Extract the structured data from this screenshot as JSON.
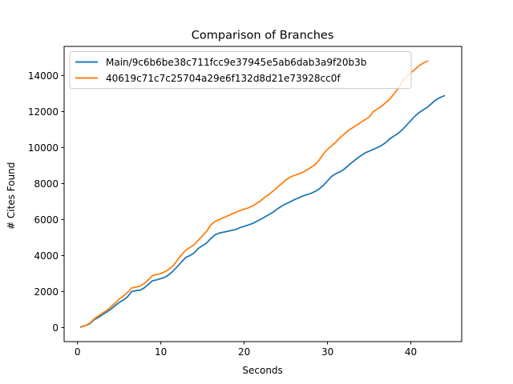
{
  "chart_data": {
    "type": "line",
    "title": "Comparison of Branches",
    "xlabel": "Seconds",
    "ylabel": "# Cites Found",
    "xlim": [
      -1.6,
      46.1
    ],
    "ylim": [
      -780,
      15620
    ],
    "xticks": [
      0,
      10,
      20,
      30,
      40
    ],
    "yticks": [
      0,
      2000,
      4000,
      6000,
      8000,
      10000,
      12000,
      14000
    ],
    "grid": false,
    "legend_position": "upper-left",
    "series": [
      {
        "name": "Main/9c6b6be38c711fcc9e37945e5ab6dab3a9f20b3b",
        "color": "#1f77b4",
        "x": [
          0.4,
          1.0,
          1.5,
          2.0,
          2.5,
          3.0,
          3.5,
          4.0,
          4.5,
          5.0,
          5.5,
          6.0,
          6.5,
          7.0,
          7.5,
          8.0,
          8.5,
          9.0,
          9.5,
          10.0,
          10.5,
          11.0,
          11.5,
          12.0,
          12.5,
          13.0,
          13.5,
          14.0,
          14.5,
          15.0,
          15.5,
          16.0,
          16.5,
          17.0,
          17.5,
          18.0,
          18.5,
          19.0,
          19.5,
          20.0,
          20.5,
          21.0,
          21.5,
          22.0,
          22.5,
          23.0,
          23.5,
          24.0,
          24.5,
          25.0,
          25.5,
          26.0,
          26.5,
          27.0,
          27.5,
          28.0,
          28.5,
          29.0,
          29.5,
          30.0,
          30.5,
          31.0,
          31.5,
          32.0,
          32.5,
          33.0,
          33.5,
          34.0,
          34.5,
          35.0,
          35.5,
          36.0,
          36.5,
          37.0,
          37.5,
          38.0,
          38.5,
          39.0,
          39.5,
          40.0,
          40.5,
          41.0,
          41.5,
          42.0,
          42.5,
          43.0,
          43.5,
          44.0
        ],
        "y": [
          30,
          110,
          220,
          430,
          560,
          720,
          860,
          1020,
          1210,
          1390,
          1530,
          1700,
          2000,
          2050,
          2080,
          2200,
          2400,
          2600,
          2650,
          2720,
          2800,
          2950,
          3150,
          3400,
          3650,
          3900,
          4000,
          4150,
          4400,
          4550,
          4700,
          4950,
          5150,
          5250,
          5300,
          5350,
          5400,
          5450,
          5550,
          5620,
          5700,
          5780,
          5900,
          6020,
          6150,
          6280,
          6420,
          6600,
          6750,
          6870,
          6980,
          7100,
          7200,
          7300,
          7380,
          7450,
          7560,
          7700,
          7900,
          8150,
          8400,
          8550,
          8650,
          8800,
          9000,
          9200,
          9380,
          9550,
          9700,
          9800,
          9900,
          10000,
          10120,
          10280,
          10500,
          10650,
          10800,
          11000,
          11250,
          11500,
          11750,
          11950,
          12100,
          12250,
          12450,
          12650,
          12780,
          12880
        ]
      },
      {
        "name": "40619c71c7c25704a29e6f132d8d21e73928cc0f",
        "color": "#ff7f0e",
        "x": [
          0.4,
          1.0,
          1.5,
          2.0,
          2.5,
          3.0,
          3.5,
          4.0,
          4.5,
          5.0,
          5.5,
          6.0,
          6.5,
          7.0,
          7.5,
          8.0,
          8.5,
          9.0,
          9.5,
          10.0,
          10.5,
          11.0,
          11.5,
          12.0,
          12.5,
          13.0,
          13.5,
          14.0,
          14.5,
          15.0,
          15.5,
          16.0,
          16.5,
          17.0,
          17.5,
          18.0,
          18.5,
          19.0,
          19.5,
          20.0,
          20.5,
          21.0,
          21.5,
          22.0,
          22.5,
          23.0,
          23.5,
          24.0,
          24.5,
          25.0,
          25.5,
          26.0,
          26.5,
          27.0,
          27.5,
          28.0,
          28.5,
          29.0,
          29.5,
          30.0,
          30.5,
          31.0,
          31.5,
          32.0,
          32.5,
          33.0,
          33.5,
          34.0,
          34.5,
          35.0,
          35.5,
          36.0,
          36.5,
          37.0,
          37.5,
          38.0,
          38.5,
          39.0,
          39.5,
          40.0,
          40.5,
          41.0,
          41.5,
          42.0
        ],
        "y": [
          40,
          120,
          260,
          480,
          640,
          800,
          950,
          1150,
          1350,
          1580,
          1750,
          1950,
          2200,
          2250,
          2300,
          2450,
          2650,
          2880,
          2950,
          3000,
          3100,
          3250,
          3450,
          3750,
          4050,
          4300,
          4450,
          4600,
          4850,
          5100,
          5350,
          5700,
          5900,
          6000,
          6100,
          6200,
          6300,
          6400,
          6500,
          6580,
          6650,
          6750,
          6900,
          7050,
          7250,
          7400,
          7600,
          7800,
          8000,
          8200,
          8350,
          8450,
          8530,
          8620,
          8750,
          8900,
          9050,
          9300,
          9650,
          9900,
          10100,
          10300,
          10550,
          10750,
          10950,
          11100,
          11250,
          11400,
          11550,
          11700,
          12000,
          12150,
          12300,
          12500,
          12700,
          13000,
          13300,
          13700,
          13950,
          14150,
          14350,
          14550,
          14700,
          14800
        ]
      }
    ]
  }
}
